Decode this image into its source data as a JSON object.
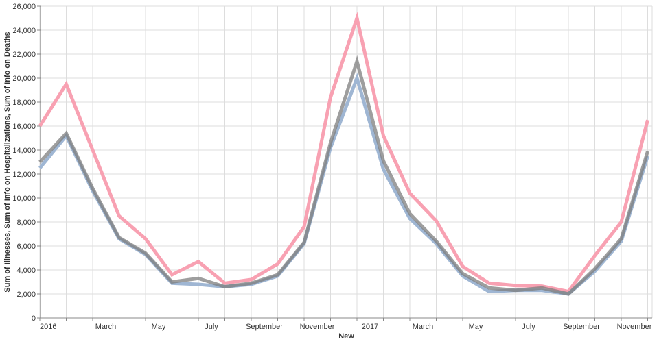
{
  "chart_data": {
    "type": "line",
    "title": "",
    "xlabel": "New",
    "ylabel": "Sum of Illnesses, Sum of Info on Hospitalizations, Sum of Info on Deaths",
    "ylim": [
      0,
      26000
    ],
    "yticks": [
      0,
      2000,
      4000,
      6000,
      8000,
      10000,
      12000,
      14000,
      16000,
      18000,
      20000,
      22000,
      24000,
      26000
    ],
    "ytick_labels": [
      "0",
      "2,000",
      "4,000",
      "6,000",
      "8,000",
      "10,000",
      "12,000",
      "14,000",
      "16,000",
      "18,000",
      "20,000",
      "22,000",
      "24,000",
      "26,000"
    ],
    "x": [
      "2016-01",
      "2016-02",
      "2016-03",
      "2016-04",
      "2016-05",
      "2016-06",
      "2016-07",
      "2016-08",
      "2016-09",
      "2016-10",
      "2016-11",
      "2016-12",
      "2017-01",
      "2017-02",
      "2017-03",
      "2017-04",
      "2017-05",
      "2017-06",
      "2017-07",
      "2017-08",
      "2017-09",
      "2017-10",
      "2017-11",
      "2017-12"
    ],
    "xtick_labels": [
      "2016",
      "March",
      "May",
      "July",
      "September",
      "November",
      "2017",
      "March",
      "May",
      "July",
      "September",
      "November"
    ],
    "xtick_months": [
      "2016-01",
      "2016-03",
      "2016-05",
      "2016-07",
      "2016-09",
      "2016-11",
      "2017-01",
      "2017-03",
      "2017-05",
      "2017-07",
      "2017-09",
      "2017-11"
    ],
    "grid": true,
    "series": [
      {
        "color": "#f8a1b2",
        "values": [
          16000,
          19500,
          14000,
          8500,
          6600,
          3600,
          4700,
          2900,
          3200,
          4500,
          7600,
          18400,
          25000,
          15200,
          10400,
          8100,
          4300,
          2900,
          2700,
          2650,
          2200,
          5200,
          8000,
          16500
        ]
      },
      {
        "color": "#9fb6d3",
        "values": [
          12500,
          15200,
          10600,
          6600,
          5300,
          2900,
          2800,
          2600,
          2800,
          3500,
          6200,
          14200,
          20000,
          12400,
          8300,
          6200,
          3500,
          2200,
          2300,
          2300,
          2000,
          3900,
          6400,
          13500
        ]
      },
      {
        "color": "#7d7d7d",
        "opacity": 0.75,
        "values": [
          13000,
          15400,
          10800,
          6700,
          5400,
          3000,
          3300,
          2600,
          2900,
          3600,
          6300,
          14600,
          21400,
          13100,
          8700,
          6400,
          3700,
          2500,
          2300,
          2500,
          2000,
          4100,
          6600,
          13900
        ]
      }
    ]
  }
}
